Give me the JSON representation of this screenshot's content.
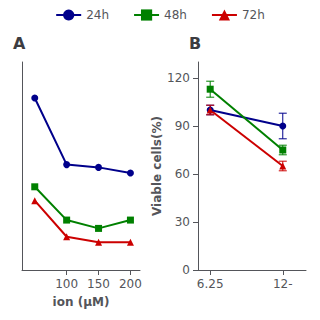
{
  "chart_data": [
    {
      "type": "line",
      "title": "A",
      "xlabel": "ion (μM)",
      "x": [
        50,
        100,
        150,
        200
      ],
      "series": [
        {
          "name": "24h",
          "color": "#00008B",
          "marker": "circle",
          "values": [
            62,
            38,
            37,
            35
          ]
        },
        {
          "name": "48h",
          "color": "#008000",
          "marker": "square",
          "values": [
            30,
            18,
            15,
            18
          ]
        },
        {
          "name": "72h",
          "color": "#CC0000",
          "marker": "triangle",
          "values": [
            25,
            12,
            10,
            10
          ]
        }
      ],
      "xlim": [
        30,
        215
      ],
      "xticks": [
        100,
        150,
        200
      ],
      "ylim": [
        0,
        75
      ],
      "yticks": [],
      "tick_labels": "x",
      "grid": false,
      "legend": "top"
    },
    {
      "type": "line",
      "title": "B",
      "ylabel": "Viable cells(%)",
      "x": [
        6.25,
        12.5
      ],
      "series": [
        {
          "name": "24h",
          "color": "#00008B",
          "marker": "circle",
          "values": [
            100,
            90
          ],
          "yerr": [
            3,
            8
          ]
        },
        {
          "name": "48h",
          "color": "#008000",
          "marker": "square",
          "values": [
            113,
            75
          ],
          "yerr": [
            5,
            3
          ]
        },
        {
          "name": "72h",
          "color": "#CC0000",
          "marker": "triangle",
          "values": [
            100,
            65
          ],
          "yerr": [
            3,
            3
          ]
        }
      ],
      "xlim": [
        5.2,
        14.5
      ],
      "xticks": [
        6.25,
        {
          "value": 12.5,
          "label": "12-"
        }
      ],
      "ylim": [
        0,
        130
      ],
      "yticks": [
        0,
        30,
        60,
        90,
        120
      ],
      "grid": false
    }
  ]
}
